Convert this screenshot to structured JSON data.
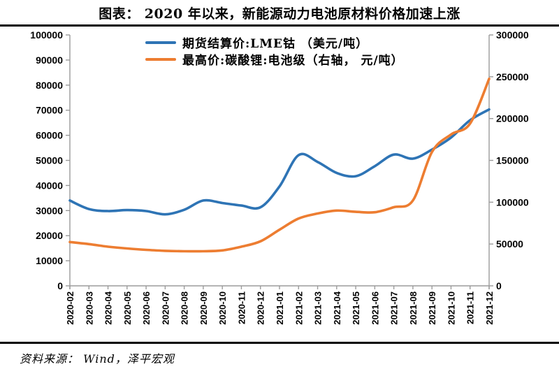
{
  "title": "图表： 2020 年以来，新能源动力电池原材料价格加速上涨",
  "source_note": "资料来源： Wind，泽平宏观",
  "colors": {
    "cobalt_blue": "#2E74B5",
    "lithium_orange": "#ED7D31",
    "axis_gray": "#9B9B9B",
    "text_black": "#000000"
  },
  "chart_data": {
    "type": "line",
    "smooth": true,
    "grid": false,
    "legend_position": "top-center",
    "categories": [
      "2020-02",
      "2020-03",
      "2020-04",
      "2020-05",
      "2020-06",
      "2020-07",
      "2020-08",
      "2020-09",
      "2020-10",
      "2020-11",
      "2020-12",
      "2021-01",
      "2021-02",
      "2021-03",
      "2021-04",
      "2021-05",
      "2021-06",
      "2021-07",
      "2021-08",
      "2021-09",
      "2021-10",
      "2021-11",
      "2021-12"
    ],
    "series": [
      {
        "name": "期货结算价:LME钴 （美元/吨）",
        "axis": "left",
        "color": "#2E74B5",
        "values": [
          34000,
          30600,
          29800,
          30200,
          29800,
          28500,
          30300,
          34000,
          33000,
          32000,
          31300,
          39600,
          52100,
          49400,
          45000,
          43700,
          47700,
          52300,
          50700,
          54300,
          59100,
          66000,
          70300
        ]
      },
      {
        "name": "最高价:碳酸锂:电池级（右轴， 元/吨）",
        "axis": "right",
        "color": "#ED7D31",
        "values": [
          52400,
          49900,
          46800,
          44700,
          43000,
          41900,
          41400,
          41400,
          42400,
          46800,
          53200,
          67100,
          80500,
          86500,
          90000,
          88500,
          88000,
          94000,
          102000,
          160000,
          181000,
          194000,
          247500
        ]
      }
    ],
    "left_axis": {
      "min": 0,
      "max": 100000,
      "step": 10000,
      "tick_labels": [
        "0",
        "10000",
        "20000",
        "30000",
        "40000",
        "50000",
        "60000",
        "70000",
        "80000",
        "90000",
        "100000"
      ]
    },
    "right_axis": {
      "min": 0,
      "max": 300000,
      "step": 50000,
      "tick_labels": [
        "0",
        "50000",
        "100000",
        "150000",
        "200000",
        "250000",
        "300000"
      ]
    }
  }
}
